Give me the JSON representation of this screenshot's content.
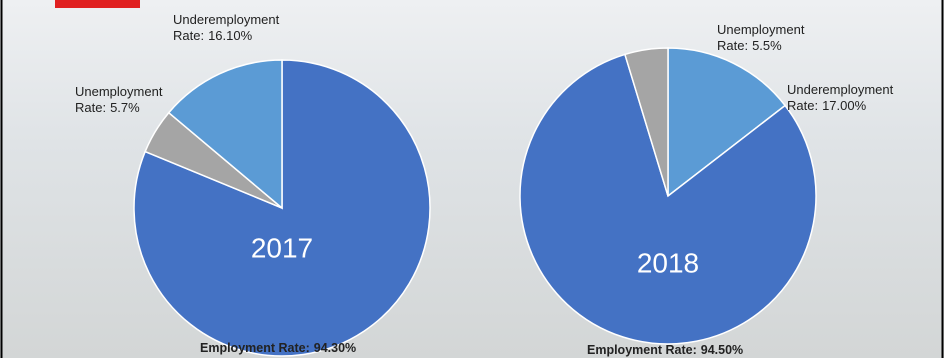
{
  "chart_data": [
    {
      "type": "pie",
      "title": "2017",
      "categories": [
        "Employment Rate:",
        "Unemployment Rate:",
        "Underemployment Rate:"
      ],
      "values": [
        94.3,
        5.7,
        16.1
      ],
      "value_labels": [
        "94.30%",
        "5.7%",
        "16.10%"
      ],
      "colors": [
        "#4472c4",
        "#a5a5a5",
        "#5b9bd5"
      ]
    },
    {
      "type": "pie",
      "title": "2018",
      "categories": [
        "Underemployment Rate:",
        "Employment Rate:",
        "Unemployment Rate:"
      ],
      "values": [
        17.0,
        94.5,
        5.5
      ],
      "value_labels": [
        "17.00%",
        "94.50%",
        "5.5%"
      ],
      "colors": [
        "#5b9bd5",
        "#4472c4",
        "#a5a5a5"
      ]
    }
  ]
}
